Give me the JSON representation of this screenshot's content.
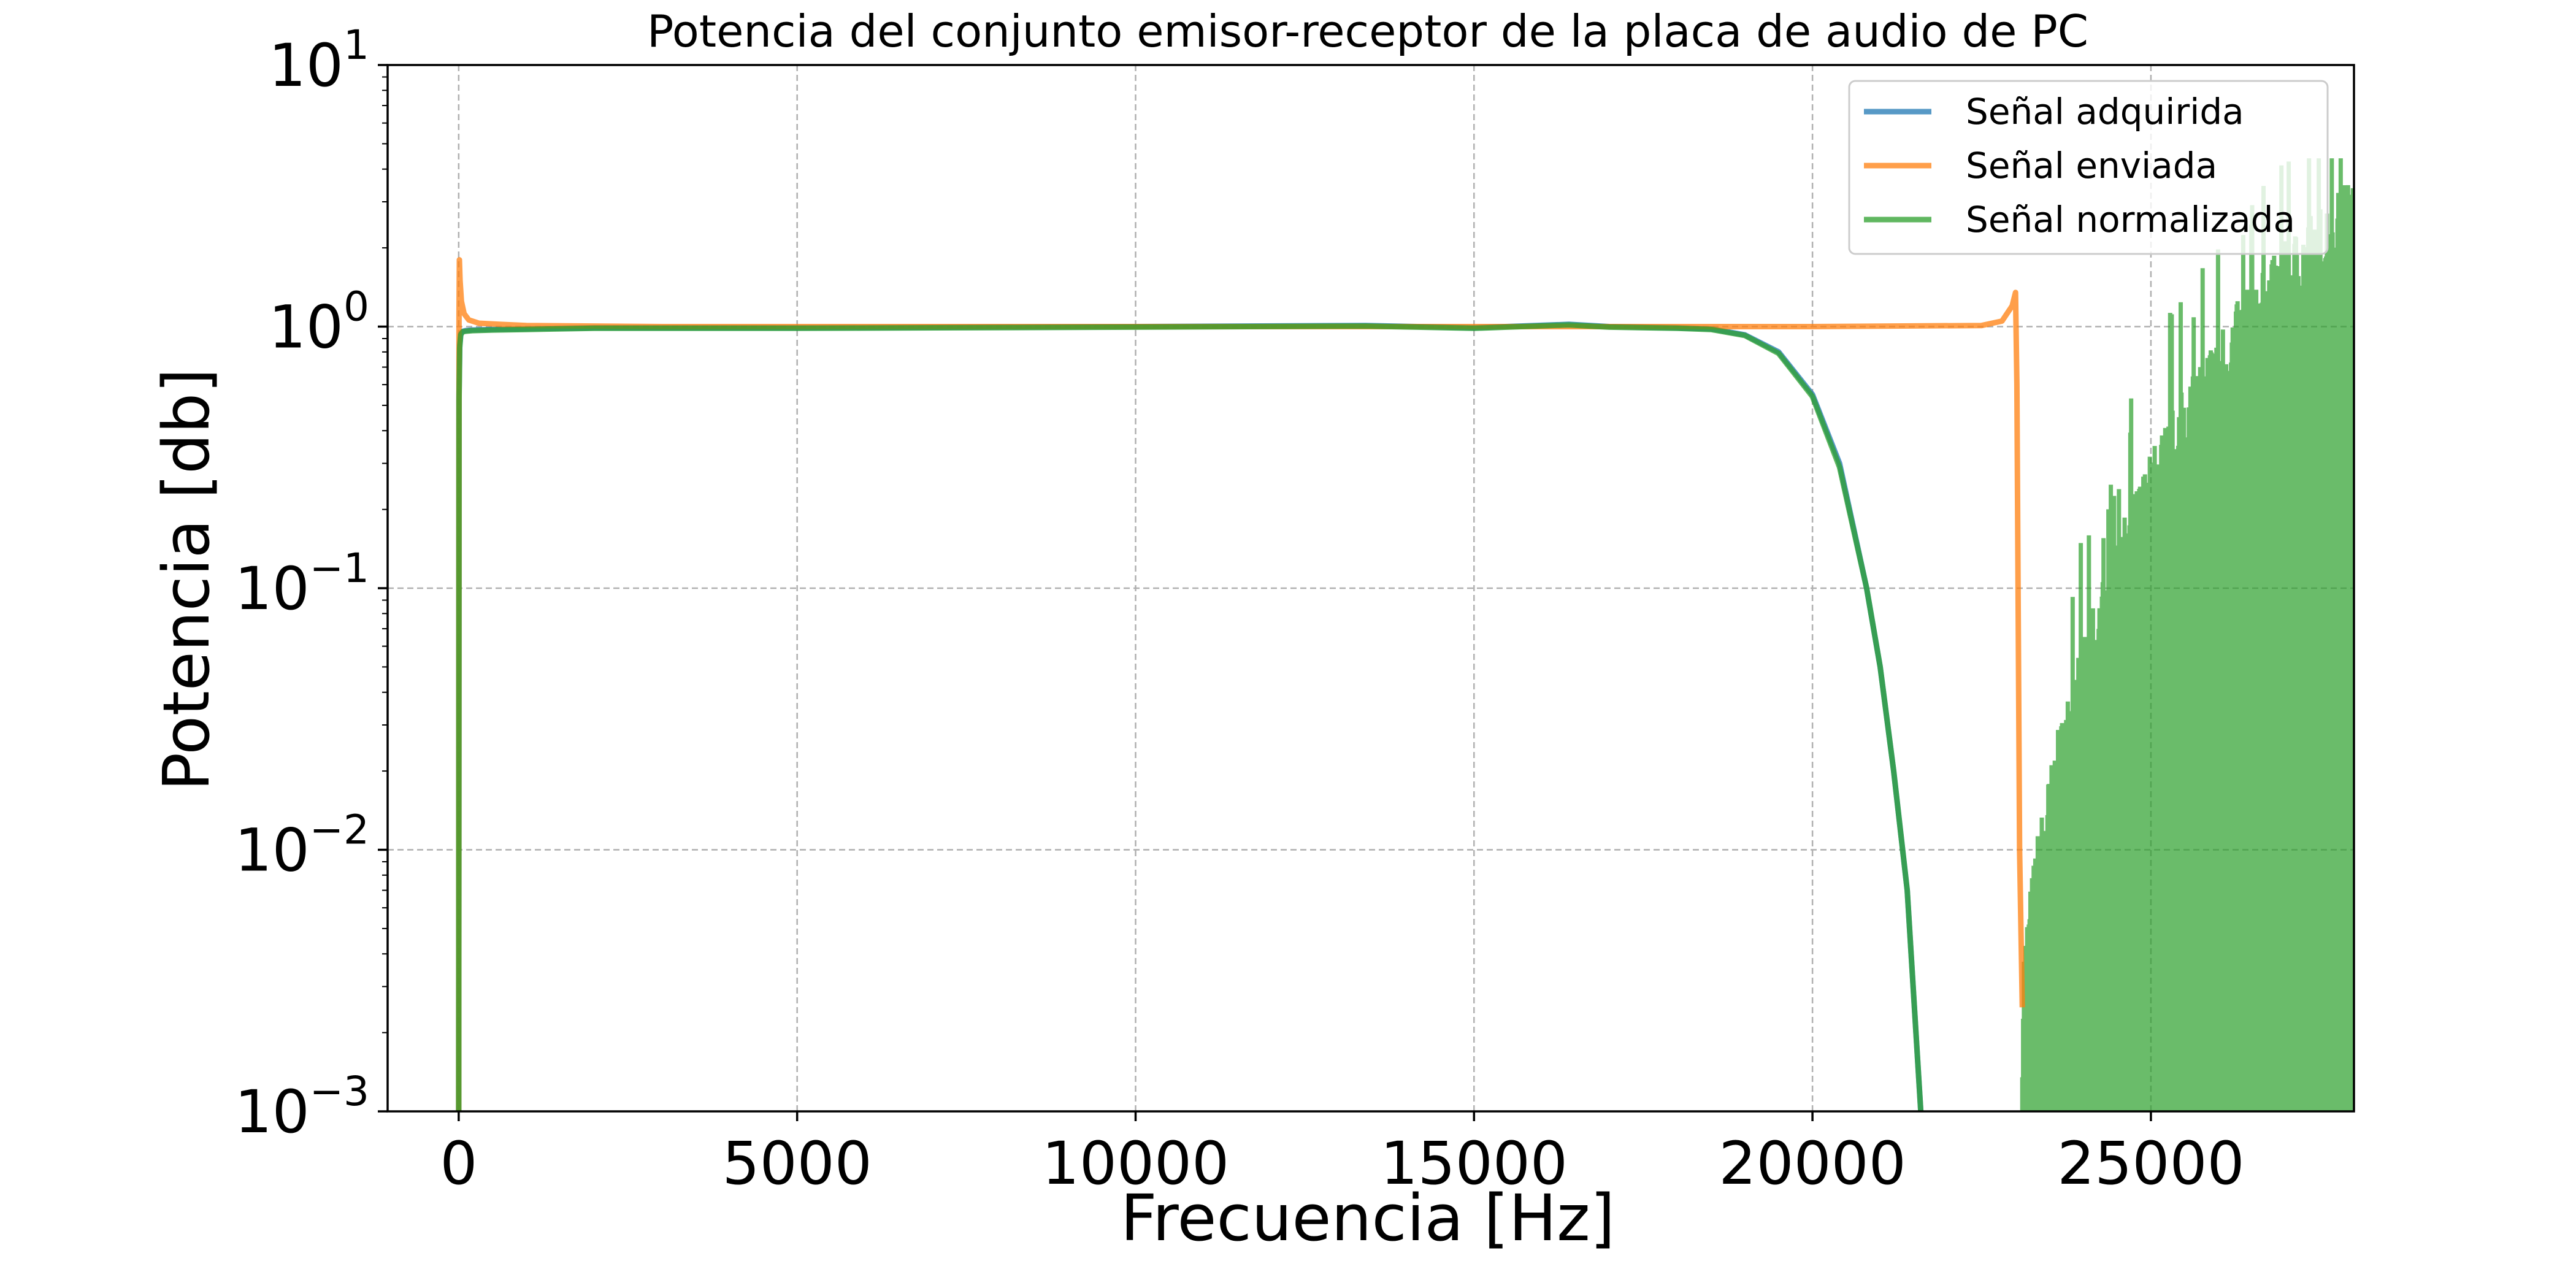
{
  "chart_data": {
    "type": "line",
    "title": "Potencia del conjunto emisor-receptor de la placa de audio de PC",
    "xlabel": "Frecuencia [Hz]",
    "ylabel": "Potencia [db]",
    "xlim": [
      -1050,
      28000
    ],
    "ylim": [
      0.001,
      10
    ],
    "yscale": "log",
    "grid": true,
    "legend_position": "top-right",
    "x_ticks": [
      0,
      5000,
      10000,
      15000,
      20000,
      25000
    ],
    "x_tick_labels": [
      "0",
      "5000",
      "10000",
      "15000",
      "20000",
      "25000"
    ],
    "y_ticks": [
      0.001,
      0.01,
      0.1,
      1,
      10
    ],
    "y_tick_labels": [
      {
        "base": "10",
        "exp": "−3"
      },
      {
        "base": "10",
        "exp": "−2"
      },
      {
        "base": "10",
        "exp": "−1"
      },
      {
        "base": "10",
        "exp": "0"
      },
      {
        "base": "10",
        "exp": "1"
      }
    ],
    "series": [
      {
        "name": "Señal adquirida",
        "color": "#1f77b4",
        "x": [
          0,
          5,
          15,
          30,
          60,
          100,
          200,
          500,
          1000,
          2000,
          5000,
          10000,
          13400,
          15000,
          16400,
          17000,
          18000,
          18500,
          19000,
          19500,
          20000,
          20400,
          20800,
          21000,
          21200,
          21400,
          21600
        ],
        "y": [
          0.001,
          0.55,
          0.85,
          0.94,
          0.96,
          0.965,
          0.97,
          0.975,
          0.98,
          0.99,
          0.99,
          1.0,
          1.01,
          0.99,
          1.02,
          1.0,
          0.99,
          0.98,
          0.93,
          0.8,
          0.55,
          0.3,
          0.1,
          0.05,
          0.02,
          0.007,
          0.001
        ]
      },
      {
        "name": "Señal enviada",
        "color": "#ff7f0e",
        "x": [
          0,
          5,
          10,
          20,
          40,
          80,
          150,
          300,
          600,
          1000,
          3000,
          10000,
          20000,
          22500,
          22800,
          22950,
          23000,
          23020,
          23060,
          23100
        ],
        "y": [
          0.001,
          1.1,
          1.8,
          1.5,
          1.25,
          1.12,
          1.06,
          1.03,
          1.02,
          1.01,
          1.0,
          1.0,
          1.0,
          1.01,
          1.05,
          1.2,
          1.35,
          0.6,
          0.01,
          0.0025
        ]
      },
      {
        "name": "Señal normalizada",
        "color": "#2ca02c",
        "x": [
          0,
          5,
          15,
          30,
          60,
          100,
          200,
          500,
          1000,
          2000,
          5000,
          10000,
          13400,
          15000,
          16400,
          17000,
          18000,
          18500,
          19000,
          19500,
          20000,
          20400,
          20800,
          21000,
          21200,
          21400,
          21600
        ],
        "y": [
          0.001,
          0.52,
          0.83,
          0.93,
          0.955,
          0.96,
          0.965,
          0.97,
          0.975,
          0.985,
          0.985,
          0.995,
          1.005,
          0.985,
          1.015,
          0.995,
          0.985,
          0.975,
          0.925,
          0.79,
          0.54,
          0.29,
          0.1,
          0.05,
          0.02,
          0.007,
          0.001
        ]
      }
    ],
    "noise_region": {
      "series": "Señal normalizada",
      "x_range": [
        23100,
        28000
      ],
      "envelope": {
        "x": [
          23100,
          23300,
          23600,
          24000,
          24500,
          25000,
          25500,
          26000,
          26500,
          27000,
          27500,
          28000
        ],
        "y": [
          0.003,
          0.008,
          0.02,
          0.05,
          0.12,
          0.25,
          0.45,
          0.75,
          1.1,
          1.6,
          2.2,
          2.8
        ]
      },
      "peak_max": 4.4
    }
  }
}
